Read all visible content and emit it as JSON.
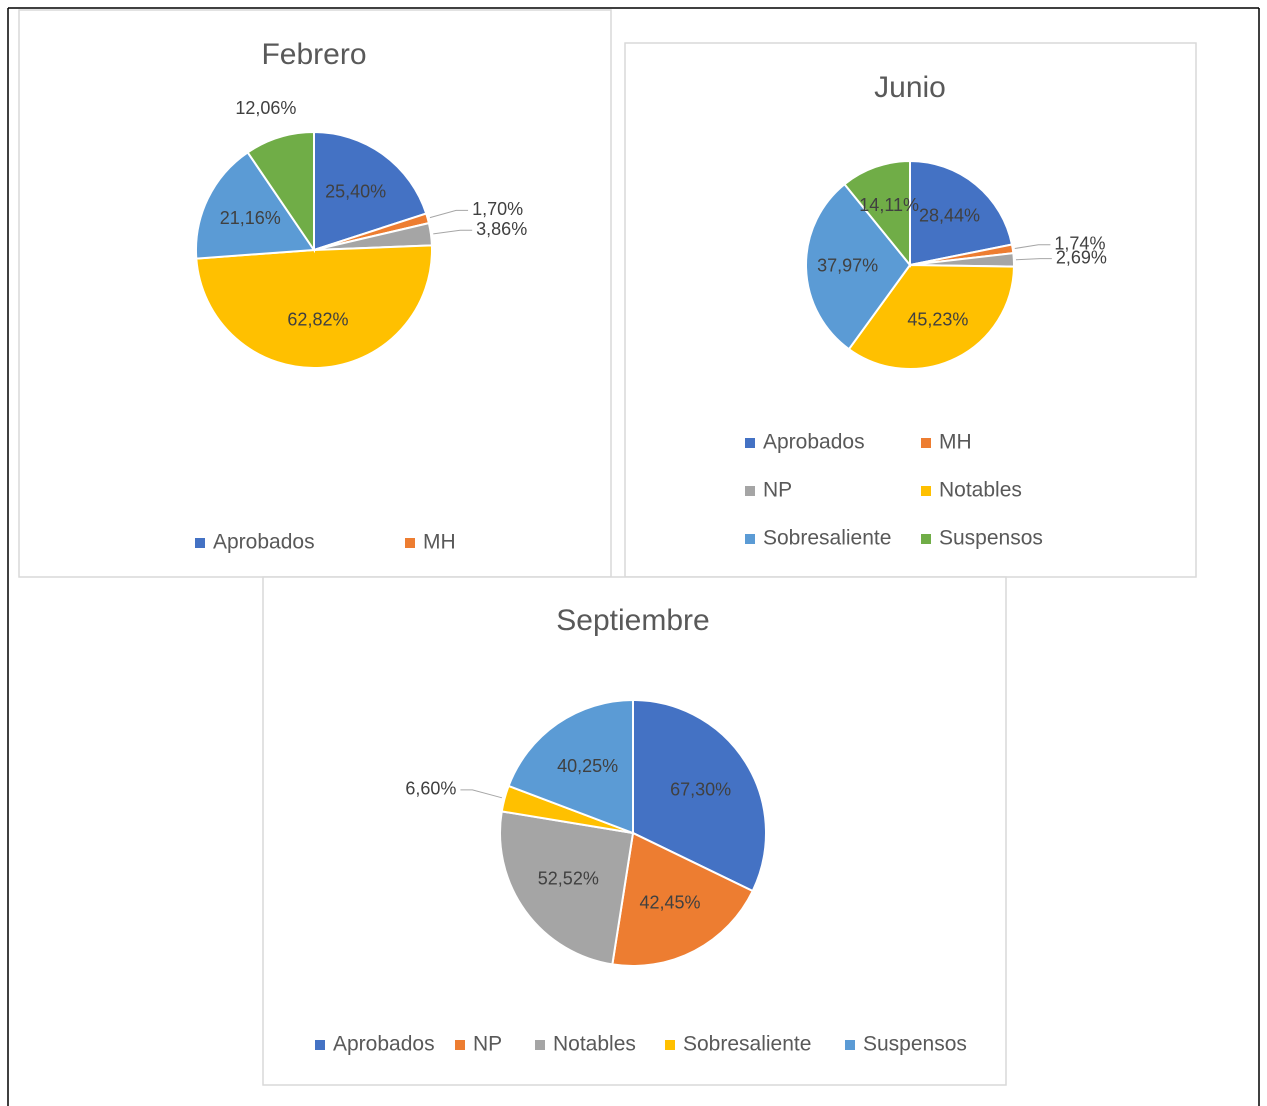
{
  "chart_data": [
    {
      "type": "pie",
      "title": "Febrero",
      "categories": [
        "Aprobados",
        "MH",
        null,
        null,
        null,
        null
      ],
      "values": [
        25.4,
        1.7,
        3.86,
        62.82,
        21.16,
        12.06
      ],
      "value_labels": [
        "25,40%",
        "1,70%",
        "3,86%",
        "62,82%",
        "21,16%",
        "12,06%"
      ],
      "colors": [
        "#4472c4",
        "#ed7d31",
        "#a5a5a5",
        "#ffc000",
        "#5b9bd5",
        "#70ad47"
      ]
    },
    {
      "type": "pie",
      "title": "Junio",
      "categories": [
        "Aprobados",
        "MH",
        "NP",
        "Notables",
        "Sobresaliente",
        "Suspensos"
      ],
      "values": [
        28.44,
        1.74,
        2.69,
        45.23,
        37.97,
        14.11
      ],
      "value_labels": [
        "28,44%",
        "1,74%",
        "2,69%",
        "45,23%",
        "37,97%",
        "14,11%"
      ],
      "colors": [
        "#4472c4",
        "#ed7d31",
        "#a5a5a5",
        "#ffc000",
        "#5b9bd5",
        "#70ad47"
      ]
    },
    {
      "type": "pie",
      "title": "Septiembre",
      "categories": [
        "Aprobados",
        "NP",
        "Notables",
        "Sobresaliente",
        "Suspensos"
      ],
      "values": [
        67.3,
        42.45,
        52.52,
        6.6,
        40.25
      ],
      "value_labels": [
        "67,30%",
        "42,45%",
        "52,52%",
        "6,60%",
        "40,25%"
      ],
      "colors": [
        "#4472c4",
        "#ed7d31",
        "#a5a5a5",
        "#ffc000",
        "#5b9bd5"
      ]
    }
  ]
}
